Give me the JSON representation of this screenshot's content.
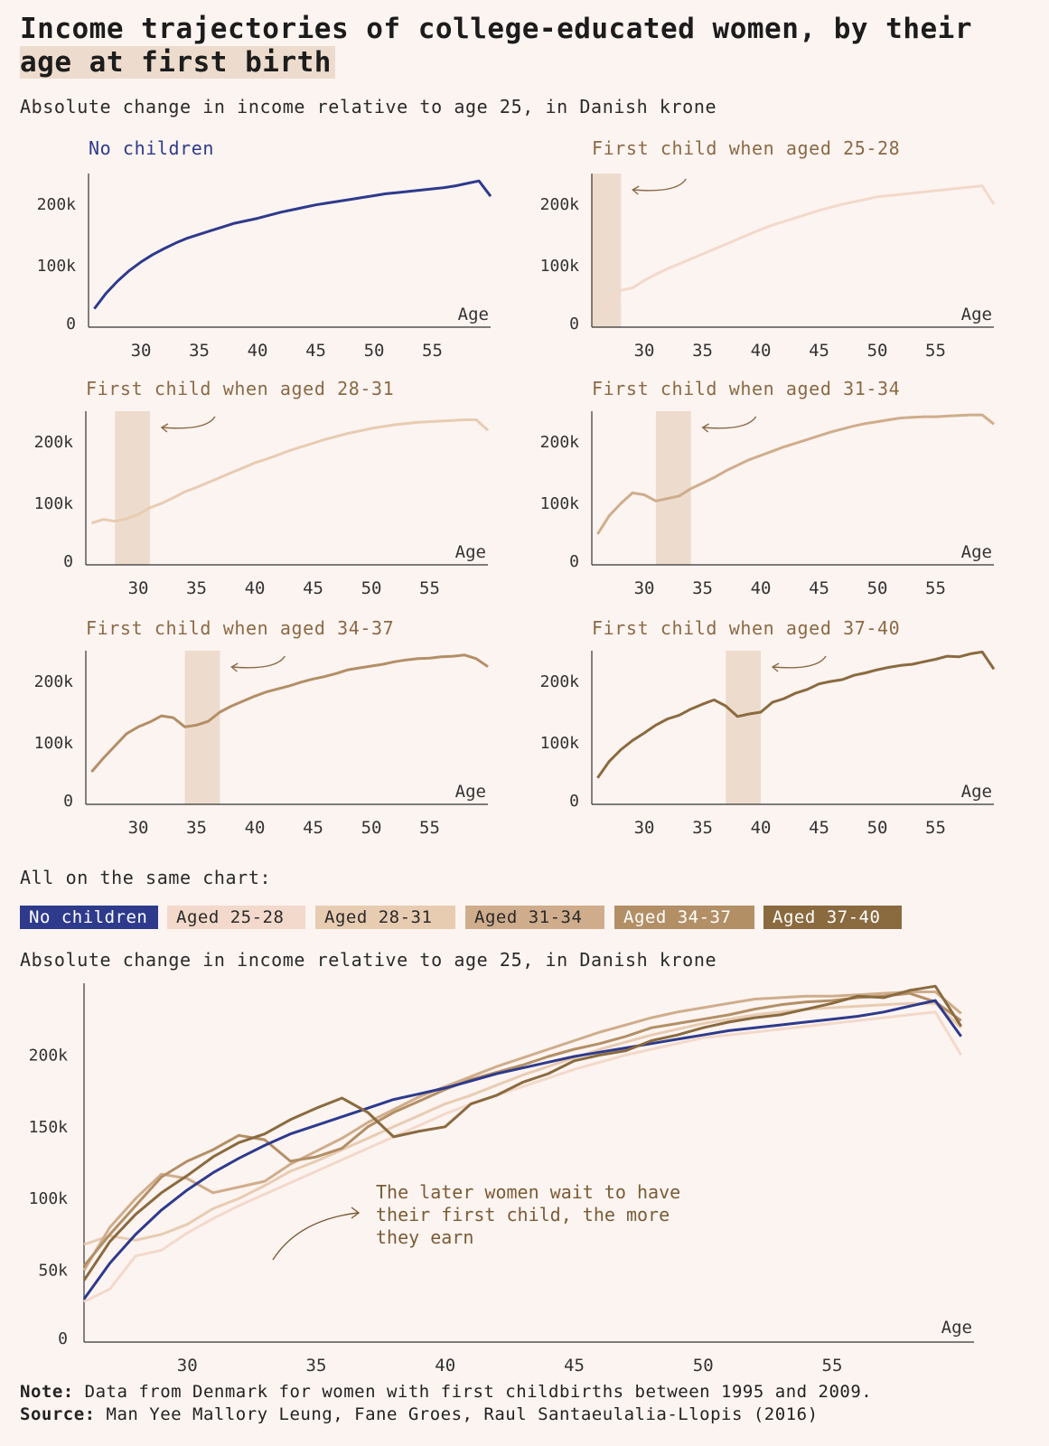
{
  "title_part1": "Income trajectories of college-educated women, by their",
  "title_part2": "age at first birth",
  "subtitle": "Absolute change in income relative to age 25, in Danish krone",
  "panels": [
    {
      "title": "No children",
      "color": "#2e3a8c"
    },
    {
      "title": "First child when aged 25-28",
      "color": "#8a6a45",
      "shade": [
        25,
        28
      ]
    },
    {
      "title": "First child when aged 28-31",
      "color": "#8a6a45",
      "shade": [
        28,
        31
      ]
    },
    {
      "title": "First child when aged 31-34",
      "color": "#8a6a45",
      "shade": [
        31,
        34
      ]
    },
    {
      "title": "First child when aged 34-37",
      "color": "#8a6a45",
      "shade": [
        34,
        37
      ]
    },
    {
      "title": "First child when aged 37-40",
      "color": "#8a6a45",
      "shade": [
        37,
        40
      ]
    }
  ],
  "small_axis": {
    "y_ticks": [
      "0",
      "100k",
      "200k"
    ],
    "x_ticks": [
      "30",
      "35",
      "40",
      "45",
      "50",
      "55"
    ],
    "x_label": "Age"
  },
  "same_chart_label": "All on the same chart:",
  "legend": [
    {
      "label": "No children",
      "bg": "#2e3a8c",
      "fg": "#ffffff"
    },
    {
      "label": "Aged 25-28",
      "bg": "#f3d9cb",
      "fg": "#2a2a2a"
    },
    {
      "label": "Aged 28-31",
      "bg": "#e8ccb2",
      "fg": "#2a2a2a"
    },
    {
      "label": "Aged 31-34",
      "bg": "#cfad8c",
      "fg": "#2a2a2a"
    },
    {
      "label": "Aged 34-37",
      "bg": "#b38f66",
      "fg": "#ffffff"
    },
    {
      "label": "Aged 37-40",
      "bg": "#8a6a3f",
      "fg": "#ffffff"
    }
  ],
  "subtitle2": "Absolute change in income relative to age 25, in Danish krone",
  "big_axis": {
    "y_ticks": [
      "0",
      "50k",
      "100k",
      "150k",
      "200k"
    ],
    "x_ticks": [
      "30",
      "35",
      "40",
      "45",
      "50",
      "55"
    ],
    "x_label": "Age"
  },
  "annotation": [
    "The later women wait to have",
    "their first child, the more",
    "they earn"
  ],
  "note_label": "Note:",
  "note_text": "Data from Denmark for women with first childbirths between 1995 and 2009.",
  "source_label": "Source:",
  "source_text": "Man Yee Mallory Leung, Fane Groes, Raul Santaeulalia-Llopis (2016)",
  "chart_data": {
    "type": "line",
    "x": [
      26,
      27,
      28,
      29,
      30,
      31,
      32,
      33,
      34,
      35,
      36,
      37,
      38,
      39,
      40,
      41,
      42,
      43,
      44,
      45,
      46,
      47,
      48,
      49,
      50,
      51,
      52,
      53,
      54,
      55,
      56,
      57,
      58,
      59,
      60
    ],
    "series": [
      {
        "name": "No children",
        "color": "#2e3a8c",
        "values": [
          30,
          55,
          75,
          92,
          106,
          118,
          128,
          137,
          145,
          151,
          157,
          163,
          169,
          173,
          177,
          182,
          187,
          191,
          195,
          199,
          202,
          205,
          208,
          211,
          214,
          217,
          219,
          221,
          223,
          225,
          227,
          230,
          234,
          238,
          213
        ]
      },
      {
        "name": "Aged 25-28",
        "color": "#f3d9cb",
        "values": [
          28,
          37,
          60,
          64,
          76,
          86,
          95,
          103,
          111,
          119,
          127,
          135,
          143,
          151,
          159,
          166,
          172,
          178,
          184,
          190,
          195,
          200,
          204,
          208,
          212,
          214,
          216,
          218,
          220,
          222,
          224,
          226,
          228,
          230,
          200
        ]
      },
      {
        "name": "Aged 28-31",
        "color": "#e8ccb2",
        "values": [
          68,
          74,
          71,
          75,
          82,
          93,
          100,
          109,
          119,
          126,
          134,
          142,
          150,
          158,
          166,
          172,
          179,
          186,
          192,
          198,
          204,
          209,
          214,
          218,
          222,
          225,
          228,
          230,
          232,
          233,
          234,
          235,
          236,
          236,
          219
        ]
      },
      {
        "name": "Aged 31-34",
        "color": "#cfad8c",
        "values": [
          50,
          80,
          100,
          117,
          114,
          104,
          108,
          112,
          124,
          133,
          142,
          153,
          162,
          171,
          178,
          185,
          192,
          198,
          204,
          210,
          216,
          221,
          226,
          230,
          233,
          236,
          239,
          240,
          241,
          241,
          242,
          243,
          244,
          244,
          229
        ]
      },
      {
        "name": "Aged 34-37",
        "color": "#b38f66",
        "values": [
          53,
          75,
          95,
          115,
          126,
          134,
          144,
          141,
          126,
          129,
          135,
          150,
          160,
          168,
          176,
          183,
          188,
          193,
          199,
          204,
          208,
          213,
          219,
          222,
          225,
          228,
          232,
          235,
          237,
          238,
          240,
          241,
          243,
          237,
          224
        ]
      },
      {
        "name": "Aged 37-40",
        "color": "#8a6a3f",
        "values": [
          43,
          70,
          89,
          104,
          116,
          129,
          139,
          145,
          155,
          163,
          170,
          160,
          143,
          147,
          150,
          166,
          172,
          181,
          187,
          196,
          200,
          203,
          210,
          214,
          219,
          223,
          226,
          228,
          232,
          236,
          241,
          240,
          245,
          248,
          220
        ]
      }
    ],
    "ylim": [
      0,
      250
    ],
    "xlabel": "Age"
  }
}
